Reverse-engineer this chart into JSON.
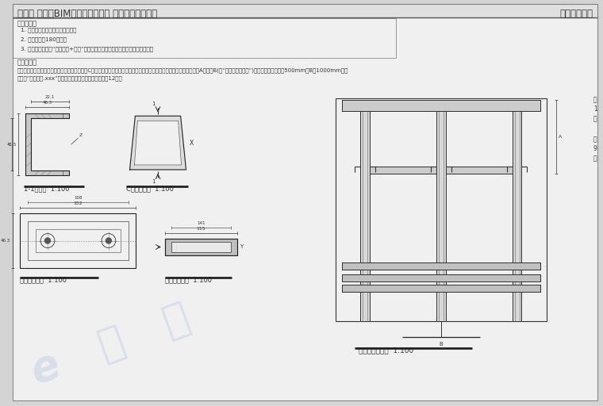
{
  "title_left": "第九期 「全国BIM技能等级考试」 二级（设备）试题",
  "title_right": "中国图学学会",
  "bg_color": "#d4d4d4",
  "page_color": "#f0f0f0",
  "req_title": "考试要求：",
  "req_items": [
    "1. 考试方式：计算机操作，闭卷。",
    "2. 考试时间：180分钟。",
    "3. 新建文件夹，以“准考证号+姓名”命名，用于存放本次考试中生成的全部文件。"
  ],
  "problem_title": "试题部分：",
  "problem_line1": "一、右图为门型支架模型主视图，该支架由三个C型钐和两个钐底座组成。根据给定配件图纸，创建支架模型，并设定距离A与距离B(见“门型支架侧视图”)为可变参数，暂设为500mm，B为1000mm，将",
  "problem_line2": "结果以“门型支架.xxx”为文件名保存在考生文件夹中。（12分）",
  "label1": "1-1断面图  1:100",
  "label2": "C型钐正视图  1:100",
  "label3": "钐底座俧视图  1:100",
  "label4": "钐底座侧视图  1:100",
  "label5": "门型支架主视图  1:100"
}
